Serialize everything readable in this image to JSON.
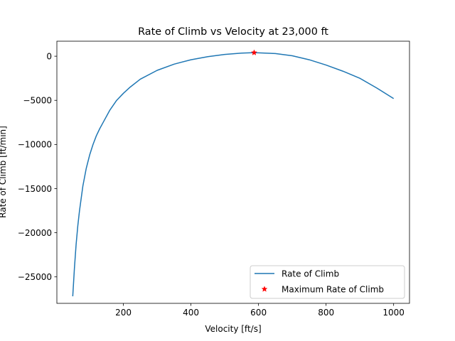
{
  "chart_data": {
    "type": "line",
    "title": "Rate of Climb vs Velocity at 23,000 ft",
    "xlabel": "Velocity [ft/s]",
    "ylabel": "Rate of Climb [ft/min]",
    "xlim": [
      3,
      1047
    ],
    "ylim": [
      -28000,
      1700
    ],
    "xticks": [
      200,
      400,
      600,
      800,
      1000
    ],
    "yticks": [
      -25000,
      -20000,
      -15000,
      -10000,
      -5000,
      0
    ],
    "grid": false,
    "legend_position": "lower-right",
    "series": [
      {
        "name": "Rate of Climb",
        "color": "#1f77b4",
        "marker": "none",
        "x": [
          50,
          55,
          60,
          65,
          70,
          80,
          90,
          100,
          110,
          120,
          130,
          140,
          160,
          180,
          200,
          220,
          250,
          300,
          350,
          400,
          450,
          500,
          550,
          587,
          650,
          700,
          750,
          800,
          850,
          900,
          950,
          1000
        ],
        "y": [
          -27200,
          -24000,
          -21300,
          -19200,
          -17500,
          -14700,
          -12700,
          -11200,
          -10000,
          -9000,
          -8200,
          -7500,
          -6100,
          -5000,
          -4200,
          -3500,
          -2600,
          -1600,
          -900,
          -400,
          -50,
          200,
          350,
          400,
          300,
          50,
          -400,
          -1000,
          -1700,
          -2500,
          -3600,
          -4800
        ]
      },
      {
        "name": "Maximum Rate of Climb",
        "color": "#ff0000",
        "marker": "star",
        "x": [
          587
        ],
        "y": [
          400
        ]
      }
    ]
  }
}
